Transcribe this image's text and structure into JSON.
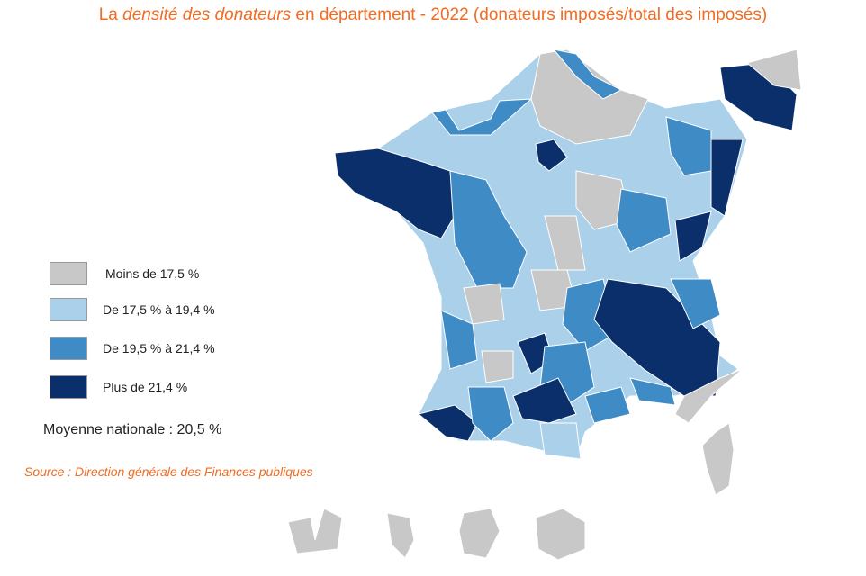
{
  "title": {
    "prefix": "La ",
    "italic": "densité des donateurs",
    "suffix": " en département - 2022 (donateurs imposés/total des imposés)"
  },
  "legend": [
    {
      "label": "Moins de 17,5 %",
      "color": "#c8c8c8"
    },
    {
      "label": "De 17,5 % à 19,4 %",
      "color": "#abd0ea"
    },
    {
      "label": "De 19,5 % à 21,4 %",
      "color": "#3f8bc6"
    },
    {
      "label": "Plus de 21,4 %",
      "color": "#0b2f6b"
    }
  ],
  "national_average": "Moyenne nationale : 20,5 %",
  "source": "Source : Direction générale des Finances publiques",
  "colors": {
    "accent": "#f26b21"
  }
}
